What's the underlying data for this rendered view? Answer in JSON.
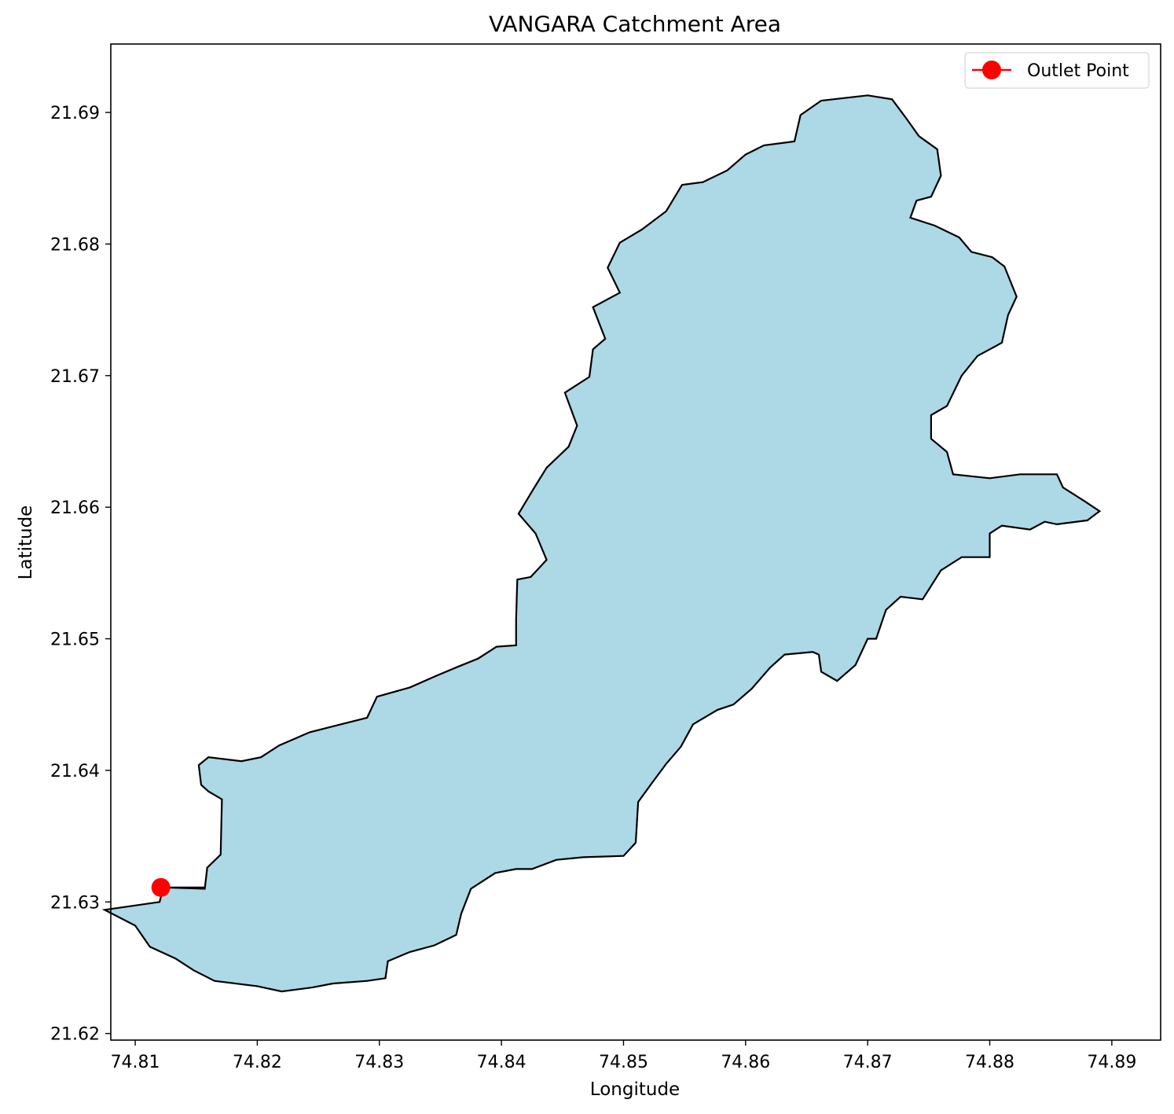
{
  "chart_data": {
    "type": "map",
    "title": "VANGARA Catchment Area",
    "xlabel": "Longitude",
    "ylabel": "Latitude",
    "xlim": [
      74.808,
      74.894
    ],
    "ylim": [
      21.6195,
      21.6952
    ],
    "x_ticks": [
      "74.81",
      "74.82",
      "74.83",
      "74.84",
      "74.85",
      "74.86",
      "74.87",
      "74.88",
      "74.89"
    ],
    "y_ticks": [
      "21.62",
      "21.63",
      "21.64",
      "21.65",
      "21.66",
      "21.67",
      "21.68",
      "21.69"
    ],
    "grid": false,
    "legend_position": "top-right",
    "colors": {
      "catchment_fill": "#add8e6",
      "catchment_edge": "#000000",
      "outlet": "#ff0000"
    },
    "catchment_boundary": [
      [
        74.8123,
        21.6311
      ],
      [
        74.8157,
        21.631
      ],
      [
        74.8159,
        21.6326
      ],
      [
        74.817,
        21.6336
      ],
      [
        74.8171,
        21.6378
      ],
      [
        74.816,
        21.6384
      ],
      [
        74.8154,
        21.6389
      ],
      [
        74.8152,
        21.6404
      ],
      [
        74.816,
        21.641
      ],
      [
        74.8187,
        21.6407
      ],
      [
        74.8203,
        21.641
      ],
      [
        74.8218,
        21.6419
      ],
      [
        74.8243,
        21.6429
      ],
      [
        74.826,
        21.6433
      ],
      [
        74.829,
        21.644
      ],
      [
        74.8298,
        21.6456
      ],
      [
        74.8325,
        21.6463
      ],
      [
        74.8347,
        21.6472
      ],
      [
        74.8365,
        21.6479
      ],
      [
        74.8381,
        21.6485
      ],
      [
        74.8396,
        21.6494
      ],
      [
        74.8412,
        21.6495
      ],
      [
        74.8412,
        21.6515
      ],
      [
        74.8413,
        21.6545
      ],
      [
        74.8424,
        21.6547
      ],
      [
        74.8437,
        21.656
      ],
      [
        74.8428,
        21.658
      ],
      [
        74.8414,
        21.6595
      ],
      [
        74.8427,
        21.6615
      ],
      [
        74.8437,
        21.663
      ],
      [
        74.8455,
        21.6646
      ],
      [
        74.8462,
        21.6662
      ],
      [
        74.8452,
        21.6687
      ],
      [
        74.8472,
        21.6699
      ],
      [
        74.8475,
        21.672
      ],
      [
        74.8485,
        21.6728
      ],
      [
        74.8475,
        21.6752
      ],
      [
        74.8497,
        21.6763
      ],
      [
        74.8487,
        21.6782
      ],
      [
        74.8497,
        21.6801
      ],
      [
        74.8515,
        21.6811
      ],
      [
        74.8535,
        21.6825
      ],
      [
        74.8548,
        21.6845
      ],
      [
        74.8565,
        21.6847
      ],
      [
        74.8585,
        21.6856
      ],
      [
        74.86,
        21.6868
      ],
      [
        74.8615,
        21.6875
      ],
      [
        74.864,
        21.6878
      ],
      [
        74.8645,
        21.6898
      ],
      [
        74.8662,
        21.6909
      ],
      [
        74.87,
        21.6913
      ],
      [
        74.872,
        21.691
      ],
      [
        74.8732,
        21.6895
      ],
      [
        74.8742,
        21.6882
      ],
      [
        74.8757,
        21.6872
      ],
      [
        74.876,
        21.6852
      ],
      [
        74.8752,
        21.6836
      ],
      [
        74.874,
        21.6833
      ],
      [
        74.8735,
        21.682
      ],
      [
        74.8755,
        21.6814
      ],
      [
        74.8775,
        21.6805
      ],
      [
        74.8785,
        21.6794
      ],
      [
        74.8802,
        21.679
      ],
      [
        74.8812,
        21.6783
      ],
      [
        74.8822,
        21.676
      ],
      [
        74.8815,
        21.6746
      ],
      [
        74.881,
        21.6725
      ],
      [
        74.879,
        21.6715
      ],
      [
        74.8777,
        21.67
      ],
      [
        74.8765,
        21.6677
      ],
      [
        74.8752,
        21.667
      ],
      [
        74.8752,
        21.6652
      ],
      [
        74.8765,
        21.6642
      ],
      [
        74.877,
        21.6625
      ],
      [
        74.88,
        21.6622
      ],
      [
        74.8825,
        21.6625
      ],
      [
        74.8855,
        21.6625
      ],
      [
        74.886,
        21.6615
      ],
      [
        74.8877,
        21.6605
      ],
      [
        74.889,
        21.6597
      ],
      [
        74.888,
        21.659
      ],
      [
        74.8855,
        21.6587
      ],
      [
        74.8845,
        21.6589
      ],
      [
        74.8833,
        21.6583
      ],
      [
        74.881,
        21.6586
      ],
      [
        74.88,
        21.658
      ],
      [
        74.88,
        21.6562
      ],
      [
        74.8777,
        21.6562
      ],
      [
        74.876,
        21.6552
      ],
      [
        74.8745,
        21.653
      ],
      [
        74.8727,
        21.6532
      ],
      [
        74.8715,
        21.6522
      ],
      [
        74.8707,
        21.65
      ],
      [
        74.87,
        21.65
      ],
      [
        74.869,
        21.648
      ],
      [
        74.8675,
        21.6468
      ],
      [
        74.8662,
        21.6475
      ],
      [
        74.866,
        21.6488
      ],
      [
        74.8655,
        21.649
      ],
      [
        74.8632,
        21.6488
      ],
      [
        74.862,
        21.6478
      ],
      [
        74.8605,
        21.6462
      ],
      [
        74.859,
        21.645
      ],
      [
        74.8577,
        21.6446
      ],
      [
        74.8557,
        21.6435
      ],
      [
        74.8547,
        21.6418
      ],
      [
        74.8535,
        21.6405
      ],
      [
        74.8523,
        21.639
      ],
      [
        74.8512,
        21.6376
      ],
      [
        74.851,
        21.6345
      ],
      [
        74.85,
        21.6335
      ],
      [
        74.8467,
        21.6334
      ],
      [
        74.8445,
        21.6332
      ],
      [
        74.8425,
        21.6325
      ],
      [
        74.8412,
        21.6325
      ],
      [
        74.8395,
        21.6322
      ],
      [
        74.8375,
        21.631
      ],
      [
        74.8367,
        21.6291
      ],
      [
        74.8363,
        21.6275
      ],
      [
        74.8345,
        21.6267
      ],
      [
        74.8325,
        21.6262
      ],
      [
        74.8307,
        21.6255
      ],
      [
        74.8305,
        21.6242
      ],
      [
        74.829,
        21.624
      ],
      [
        74.8262,
        21.6238
      ],
      [
        74.8245,
        21.6235
      ],
      [
        74.822,
        21.6232
      ],
      [
        74.82,
        21.6236
      ],
      [
        74.8165,
        21.624
      ],
      [
        74.8148,
        21.6248
      ],
      [
        74.8133,
        21.6257
      ],
      [
        74.8112,
        21.6266
      ],
      [
        74.81,
        21.6282
      ],
      [
        74.8075,
        21.6294
      ],
      [
        74.812,
        21.63
      ],
      [
        74.8123,
        21.6311
      ]
    ],
    "outlet_point": {
      "lon": 74.8121,
      "lat": 21.6311,
      "label": "Outlet Point"
    }
  }
}
